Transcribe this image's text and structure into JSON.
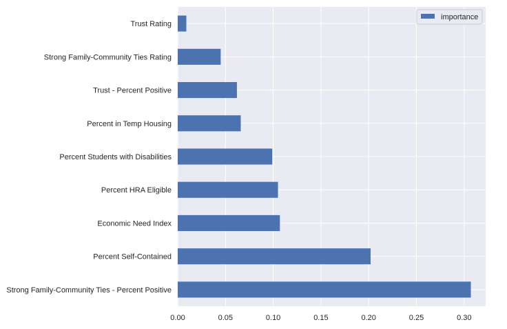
{
  "chart_data": {
    "type": "bar",
    "orientation": "horizontal",
    "categories": [
      "Strong Family-Community Ties - Percent Positive",
      "Percent Self-Contained",
      "Economic Need Index",
      "Percent HRA Eligible",
      "Percent Students with Disabilities",
      "Percent in Temp Housing",
      "Trust - Percent Positive",
      "Strong Family-Community Ties Rating",
      "Trust Rating"
    ],
    "series": [
      {
        "name": "importance",
        "values": [
          0.307,
          0.202,
          0.107,
          0.105,
          0.099,
          0.066,
          0.062,
          0.045,
          0.009
        ]
      }
    ],
    "xticks": [
      "0.00",
      "0.05",
      "0.10",
      "0.15",
      "0.20",
      "0.25",
      "0.30"
    ],
    "xlim": [
      0,
      0.3225
    ],
    "title": "",
    "xlabel": "",
    "ylabel": "",
    "grid": true,
    "legend": {
      "position": "top-right"
    },
    "colors": {
      "bar": "#4C72B0",
      "plot_bg": "#EAEAF2",
      "grid": "#ffffff",
      "text": "#262626"
    }
  }
}
